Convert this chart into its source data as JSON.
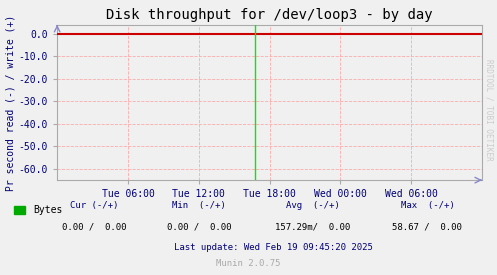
{
  "title": "Disk throughput for /dev/loop3 - by day",
  "ylabel": "Pr second read (-) / write (+)",
  "ylim": [
    -65,
    4
  ],
  "yticks": [
    0.0,
    -10.0,
    -20.0,
    -30.0,
    -40.0,
    -50.0,
    -60.0
  ],
  "ytick_labels": [
    "0.0",
    "-10.0",
    "-20.0",
    "-30.0",
    "-40.0",
    "-50.0",
    "-60.0"
  ],
  "xtick_labels": [
    "Tue 06:00",
    "Tue 12:00",
    "Tue 18:00",
    "Wed 00:00",
    "Wed 06:00"
  ],
  "xtick_positions": [
    0.16667,
    0.33333,
    0.5,
    0.66667,
    0.83333
  ],
  "green_line_x": 0.465,
  "green_line_color": "#00ee00",
  "hline_color": "#cc0000",
  "grid_color": "#ffaaaa",
  "bg_color": "#f0f0f0",
  "plot_bg_color": "#f0f0f0",
  "border_color": "#aaaaaa",
  "tick_color": "#000077",
  "legend_label": "Bytes",
  "legend_color": "#00aa00",
  "watermark": "RRDTOOL / TOBI OETIKER",
  "munin_version": "Munin 2.0.75",
  "title_fontsize": 10,
  "ylabel_fontsize": 7,
  "tick_fontsize": 7,
  "footer_fontsize": 6.5,
  "watermark_fontsize": 5.5,
  "arrow_color": "#8888cc"
}
